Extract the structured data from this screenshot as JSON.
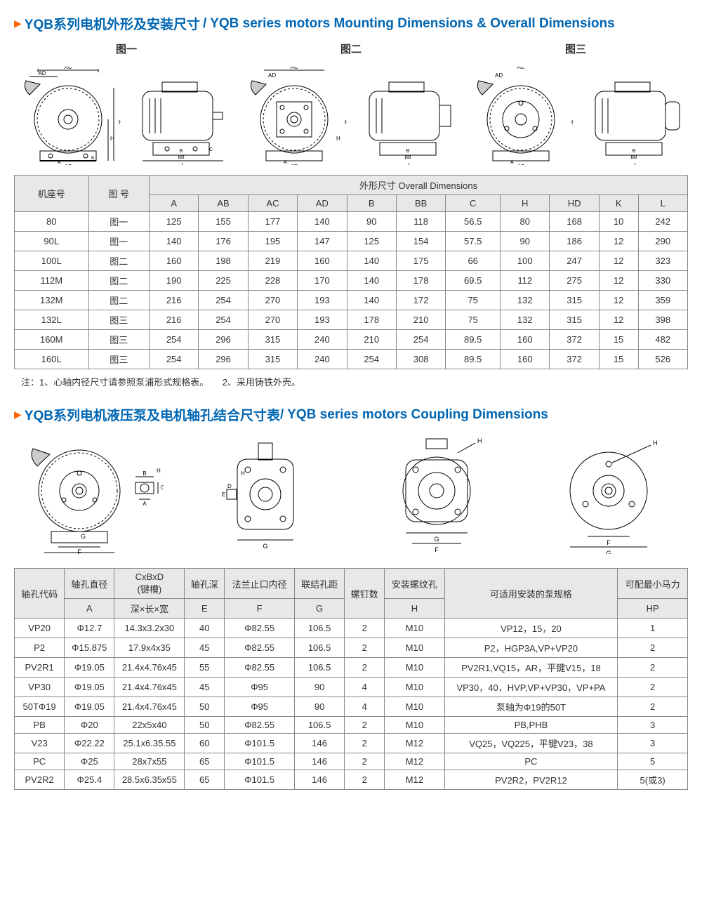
{
  "section1": {
    "title_cn": "YQB系列电机外形及安装尺寸",
    "title_en": "/ YQB series motors Mounting Dimensions & Overall Dimensions",
    "fig_labels": [
      "图一",
      "图二",
      "图三"
    ],
    "table": {
      "col_frame": "机座号",
      "col_fig": "图 号",
      "group_header": "外形尺寸 Overall Dimensions",
      "subcols": [
        "A",
        "AB",
        "AC",
        "AD",
        "B",
        "BB",
        "C",
        "H",
        "HD",
        "K",
        "L"
      ],
      "rows": [
        [
          "80",
          "图一",
          "125",
          "155",
          "177",
          "140",
          "90",
          "118",
          "56.5",
          "80",
          "168",
          "10",
          "242"
        ],
        [
          "90L",
          "图一",
          "140",
          "176",
          "195",
          "147",
          "125",
          "154",
          "57.5",
          "90",
          "186",
          "12",
          "290"
        ],
        [
          "100L",
          "图二",
          "160",
          "198",
          "219",
          "160",
          "140",
          "175",
          "66",
          "100",
          "247",
          "12",
          "323"
        ],
        [
          "112M",
          "图二",
          "190",
          "225",
          "228",
          "170",
          "140",
          "178",
          "69.5",
          "112",
          "275",
          "12",
          "330"
        ],
        [
          "132M",
          "图二",
          "216",
          "254",
          "270",
          "193",
          "140",
          "172",
          "75",
          "132",
          "315",
          "12",
          "359"
        ],
        [
          "132L",
          "图三",
          "216",
          "254",
          "270",
          "193",
          "178",
          "210",
          "75",
          "132",
          "315",
          "12",
          "398"
        ],
        [
          "160M",
          "图三",
          "254",
          "296",
          "315",
          "240",
          "210",
          "254",
          "89.5",
          "160",
          "372",
          "15",
          "482"
        ],
        [
          "160L",
          "图三",
          "254",
          "296",
          "315",
          "240",
          "254",
          "308",
          "89.5",
          "160",
          "372",
          "15",
          "526"
        ]
      ]
    },
    "note": "注：1、心轴内径尺寸请参照泵浦形式规格表。　　2、采用铸铁外壳。"
  },
  "section2": {
    "title_cn": "YQB系列电机液压泵及电机轴孔结合尺寸表",
    "title_en": " / YQB series motors Coupling Dimensions",
    "table": {
      "col_code": "轴孔代码",
      "h1": [
        "轴孔直径",
        "CxBxD\n(键槽)",
        "轴孔深",
        "法兰止口内径",
        "联结孔距",
        "螺钉数",
        "安装螺纹孔",
        "可适用安装的泵规格",
        "可配最小马力"
      ],
      "h2": [
        "A",
        "深×长×宽",
        "E",
        "F",
        "G",
        "",
        "H",
        "",
        "HP"
      ],
      "rows": [
        [
          "VP20",
          "Φ12.7",
          "14.3x3.2x30",
          "40",
          "Φ82.55",
          "106.5",
          "2",
          "M10",
          "VP12，15，20",
          "1"
        ],
        [
          "P2",
          "Φ15.875",
          "17.9x4x35",
          "45",
          "Φ82.55",
          "106.5",
          "2",
          "M10",
          "P2，HGP3A,VP+VP20",
          "2"
        ],
        [
          "PV2R1",
          "Φ19.05",
          "21.4x4.76x45",
          "55",
          "Φ82.55",
          "106.5",
          "2",
          "M10",
          "PV2R1,VQ15，AR，平键V15，18",
          "2"
        ],
        [
          "VP30",
          "Φ19.05",
          "21.4x4.76x45",
          "45",
          "Φ95",
          "90",
          "4",
          "M10",
          "VP30，40，HVP,VP+VP30，VP+PA",
          "2"
        ],
        [
          "50TΦ19",
          "Φ19.05",
          "21.4x4.76x45",
          "50",
          "Φ95",
          "90",
          "4",
          "M10",
          "泵轴为Φ19的50T",
          "2"
        ],
        [
          "PB",
          "Φ20",
          "22x5x40",
          "50",
          "Φ82.55",
          "106.5",
          "2",
          "M10",
          "PB,PHB",
          "3"
        ],
        [
          "V23",
          "Φ22.22",
          "25.1x6.35.55",
          "60",
          "Φ101.5",
          "146",
          "2",
          "M12",
          "VQ25，VQ225，平键V23，38",
          "3"
        ],
        [
          "PC",
          "Φ25",
          "28x7x55",
          "65",
          "Φ101.5",
          "146",
          "2",
          "M12",
          "PC",
          "5"
        ],
        [
          "PV2R2",
          "Φ25.4",
          "28.5x6.35x55",
          "65",
          "Φ101.5",
          "146",
          "2",
          "M12",
          "PV2R2，PV2R12",
          "5(或3)"
        ]
      ]
    }
  },
  "style": {
    "accent": "#0066b3",
    "marker": "#ff6600",
    "header_bg": "#e8e8e8",
    "border": "#888888"
  }
}
